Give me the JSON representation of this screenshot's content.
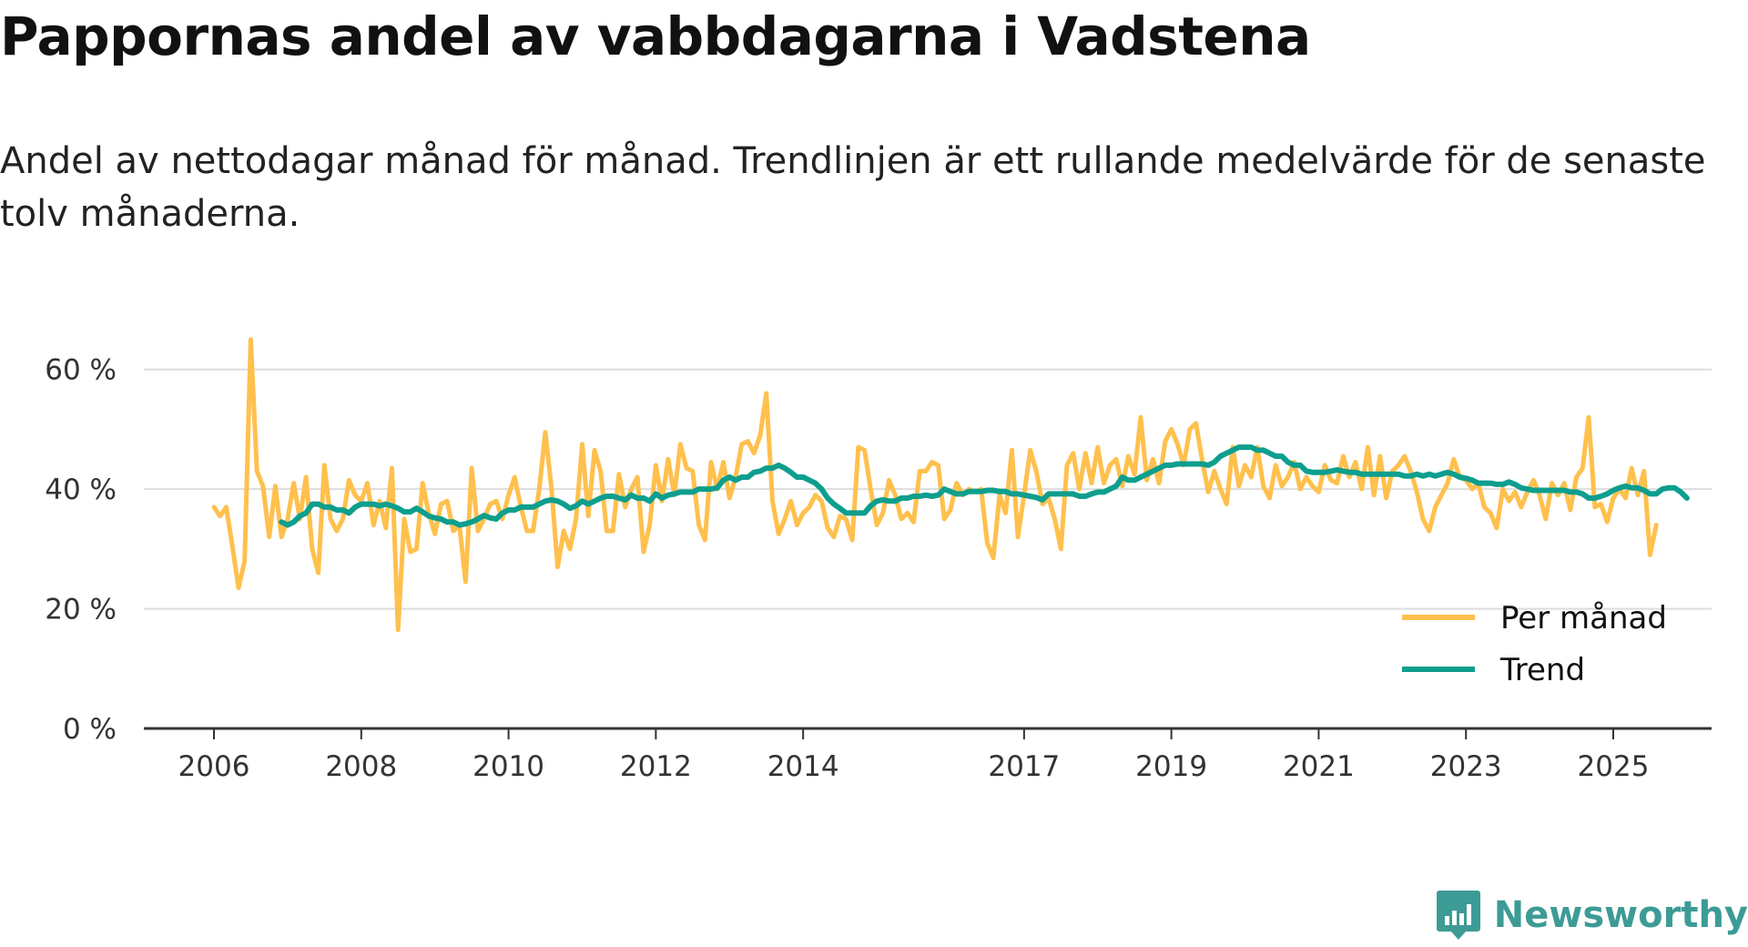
{
  "title": "Pappornas andel av vabbdagarna i Vadstena",
  "subtitle": "Andel av nettodagar månad för månad. Trendlinjen är ett rullande medelvärde för de senaste tolv månaderna.",
  "brand": {
    "name": "Newsworthy",
    "icon": "bar-chart-logo-icon",
    "color": "#3d9b95"
  },
  "colors": {
    "per_month": "#ffc04d",
    "trend": "#0e9e8e",
    "grid": "#dddddd",
    "axis": "#333333"
  },
  "chart_data": {
    "type": "line",
    "y_unit": "%",
    "ylim": [
      0,
      70
    ],
    "xlim": [
      2005.5,
      2025.8
    ],
    "y_ticks": [
      0,
      20,
      40,
      60
    ],
    "y_tick_labels": [
      "0 %",
      "20 %",
      "40 %",
      "60 %"
    ],
    "x_ticks": [
      2006,
      2008,
      2010,
      2012,
      2014,
      2017,
      2019,
      2021,
      2023,
      2025
    ],
    "x_tick_labels": [
      "2006",
      "2008",
      "2010",
      "2012",
      "2014",
      "2017",
      "2019",
      "2021",
      "2023",
      "2025"
    ],
    "grid": true,
    "legend": {
      "position": "bottom-right",
      "entries": [
        "Per månad",
        "Trend"
      ]
    },
    "series": [
      {
        "name": "Per månad",
        "start": 2006.0,
        "step": 0.0833333,
        "values": [
          37,
          35.5,
          37,
          30.5,
          23.5,
          28,
          65,
          43,
          40.5,
          32,
          40.5,
          32,
          35,
          41,
          35,
          42,
          30,
          26,
          44,
          35,
          33,
          35,
          41.5,
          39,
          38,
          41,
          34,
          38,
          33.5,
          43.5,
          16.5,
          35,
          29.5,
          30,
          41,
          36,
          32.5,
          37.5,
          38,
          33,
          34,
          24.5,
          43.5,
          33,
          35,
          37.5,
          38,
          35,
          39,
          42,
          37,
          33,
          33,
          40,
          49.5,
          40,
          27,
          33,
          30,
          35,
          47.5,
          35.5,
          46.5,
          43,
          33,
          33,
          42.5,
          37,
          40,
          42,
          29.5,
          34,
          44,
          38,
          45,
          39,
          47.5,
          43.5,
          43,
          34,
          31.5,
          44.5,
          40,
          44.5,
          38.5,
          42,
          47.5,
          48,
          46,
          49,
          56,
          38,
          32.5,
          35,
          38,
          34,
          36,
          37,
          39,
          38,
          33.5,
          32,
          35.5,
          35,
          31.5,
          47,
          46.5,
          40,
          34,
          36,
          41.5,
          39,
          35,
          36,
          34.5,
          43,
          43,
          44.5,
          44,
          35,
          36.5,
          41,
          39,
          40,
          39.5,
          40,
          31,
          28.5,
          39,
          36,
          46.5,
          32,
          39,
          46.5,
          43,
          37.5,
          38.5,
          35,
          30,
          44,
          46,
          40,
          46,
          41,
          47,
          41,
          44,
          45,
          40.5,
          45.5,
          42.5,
          52,
          41.5,
          45,
          41,
          48,
          50,
          47.5,
          44,
          50,
          51,
          45,
          39.5,
          43,
          40,
          37.5,
          47,
          40.5,
          44,
          42,
          47,
          40.5,
          38.5,
          44,
          40.5,
          42,
          44.5,
          40,
          42,
          40.5,
          39.5,
          44,
          41.5,
          41,
          45.5,
          42,
          44.5,
          40,
          47,
          39,
          45.5,
          38.5,
          43,
          44,
          45.5,
          43,
          39.5,
          35,
          33,
          37,
          39,
          41,
          45,
          42,
          41.5,
          40,
          41,
          37,
          36,
          33.5,
          40,
          38,
          39.5,
          37,
          39.5,
          41.5,
          39,
          35,
          41,
          39,
          41,
          36.5,
          42,
          43.5,
          52,
          37,
          37.5,
          34.5,
          38.5,
          40,
          38.5,
          43.5,
          39,
          43,
          29,
          34
        ]
      },
      {
        "name": "Trend",
        "start": 2006.9167,
        "step": 0.0833333,
        "values": [
          34.5,
          34,
          34.5,
          35.5,
          36,
          37.5,
          37.5,
          37,
          37,
          36.5,
          36.5,
          36,
          37,
          37.5,
          37.5,
          37.5,
          37.2,
          37.5,
          37.2,
          36.8,
          36.2,
          36.2,
          36.8,
          36.2,
          35.5,
          35.2,
          35,
          34.5,
          34.5,
          34,
          34.2,
          34.5,
          35,
          35.6,
          35.2,
          35,
          36,
          36.5,
          36.5,
          37,
          37,
          37,
          37.5,
          38,
          38.2,
          38,
          37.5,
          36.8,
          37.2,
          38,
          37.5,
          38,
          38.5,
          38.8,
          38.8,
          38.5,
          38.2,
          39,
          38.5,
          38.5,
          38,
          39.2,
          38.5,
          39,
          39.2,
          39.5,
          39.5,
          39.5,
          40,
          40,
          40,
          40.2,
          41.5,
          42,
          41.5,
          42,
          42,
          42.8,
          43,
          43.5,
          43.5,
          44,
          43.5,
          42.8,
          42,
          42,
          41.5,
          41,
          40,
          38.5,
          37.5,
          36.8,
          36,
          36,
          36,
          36,
          37.2,
          38,
          38.2,
          38,
          38,
          38.5,
          38.5,
          38.8,
          38.8,
          39,
          38.8,
          39,
          40,
          39.6,
          39.2,
          39.2,
          39.6,
          39.6,
          39.6,
          39.8,
          39.8,
          39.6,
          39.6,
          39.2,
          39.2,
          39,
          38.8,
          38.6,
          38.2,
          39.2,
          39.2,
          39.2,
          39.2,
          39.2,
          38.8,
          38.8,
          39.2,
          39.5,
          39.5,
          40,
          40.5,
          42,
          41.5,
          41.5,
          42,
          42.5,
          43,
          43.5,
          44,
          44,
          44.2,
          44.2,
          44.2,
          44.2,
          44.2,
          44,
          44.5,
          45.5,
          46,
          46.5,
          47,
          47,
          47,
          46.5,
          46.5,
          46,
          45.5,
          45.5,
          44.5,
          44,
          44,
          43,
          42.8,
          42.8,
          42.8,
          43,
          43.2,
          43,
          42.8,
          42.8,
          42.5,
          42.5,
          42.5,
          42.5,
          42.5,
          42.5,
          42.5,
          42.2,
          42.2,
          42.5,
          42.2,
          42.5,
          42.2,
          42.5,
          42.8,
          42.5,
          42,
          41.8,
          41.5,
          41,
          41,
          41,
          40.8,
          40.8,
          41.2,
          40.8,
          40.2,
          40,
          39.8,
          39.8,
          39.8,
          39.8,
          39.8,
          39.8,
          39.5,
          39.5,
          39.2,
          38.5,
          38.5,
          38.8,
          39.2,
          39.8,
          40.2,
          40.5,
          40.2,
          40.2,
          39.8,
          39.2,
          39.2,
          40,
          40.2,
          40.2,
          39.5,
          38.5
        ]
      }
    ]
  }
}
